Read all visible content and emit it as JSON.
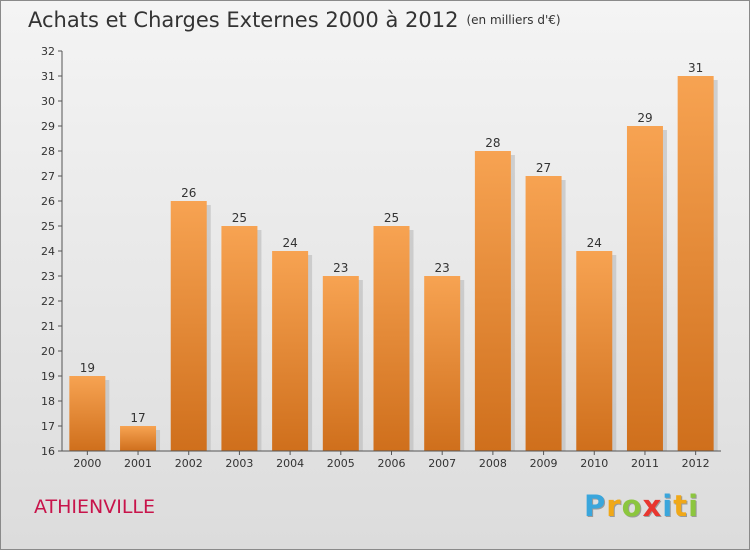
{
  "title": {
    "main": "Achats et Charges Externes 2000 à 2012",
    "unit": "(en milliers d'€)"
  },
  "city": "ATHIENVILLE",
  "brand": {
    "letters": [
      "P",
      "r",
      "o",
      "x",
      "i",
      "t",
      "i"
    ],
    "colors": [
      "#3aa6dc",
      "#f0a818",
      "#8cc63e",
      "#e8362f",
      "#3aa6dc",
      "#f0a818",
      "#8cc63e"
    ]
  },
  "chart_data": {
    "type": "bar",
    "categories": [
      "2000",
      "2001",
      "2002",
      "2003",
      "2004",
      "2005",
      "2006",
      "2007",
      "2008",
      "2009",
      "2010",
      "2011",
      "2012"
    ],
    "values": [
      19,
      17,
      26,
      25,
      24,
      23,
      25,
      23,
      28,
      27,
      24,
      29,
      31
    ],
    "title": "Achats et Charges Externes 2000 à 2012",
    "subtitle": "(en milliers d'€)",
    "ylim": [
      16,
      32
    ],
    "yticks": [
      16,
      17,
      18,
      19,
      20,
      21,
      22,
      23,
      24,
      25,
      26,
      27,
      28,
      29,
      30,
      31,
      32
    ],
    "grid": false,
    "bar_color": "#e8862a",
    "data_labels": true
  }
}
